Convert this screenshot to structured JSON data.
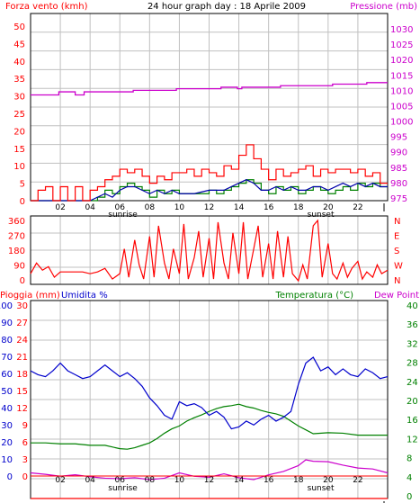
{
  "header": {
    "left_label": "Forza vento (kmh)",
    "title": "24 hour graph day : 18 Aprile 2009",
    "right_label": "Pressione (mb)"
  },
  "bottom_header": {
    "rain_label": "Pioggia (mm)",
    "humidity_label": "Umidita %",
    "temp_label": "Temperatura (°C)",
    "dew_label": "Dew Point"
  },
  "markers": {
    "sunrise": "sunrise",
    "sunset": "sunset"
  },
  "colors": {
    "wind_gust": "#ff0000",
    "wind_avg": "#008000",
    "wind_dark": "#0000aa",
    "pressure": "#cc00cc",
    "direction": "#ff0000",
    "humidity": "#0000cc",
    "temperature": "#008000",
    "dewpoint": "#cc00cc",
    "rain": "#ff0000",
    "grid": "#c0c0c0",
    "axis_left": "#ff0000",
    "axis_humidity": "#0000cc",
    "axis_right_top": "#cc00cc",
    "axis_right_bottom": "#008000"
  },
  "chart_data": [
    {
      "type": "line",
      "name": "wind-pressure",
      "x_ticks": [
        "02",
        "04",
        "06",
        "08",
        "10",
        "12",
        "14",
        "16",
        "18",
        "20",
        "22"
      ],
      "y_left_ticks": [
        "0",
        "5",
        "10",
        "15",
        "20",
        "25",
        "30",
        "35",
        "40",
        "45",
        "50"
      ],
      "y_left_range": [
        0,
        50
      ],
      "y_right_ticks": [
        "975",
        "980",
        "985",
        "990",
        "995",
        "1000",
        "1005",
        "1010",
        "1015",
        "1020",
        "1025",
        "1030"
      ],
      "y_right_range": [
        975,
        1030
      ],
      "pressure": {
        "x": [
          0,
          1,
          1.9,
          3,
          3.6,
          5.5,
          6.9,
          9.8,
          12.1,
          12.8,
          13.9,
          14.2,
          16.5,
          16.8,
          19.1,
          20.3,
          20.6,
          22.2,
          22.6,
          24
        ],
        "y": [
          1008.5,
          1008.5,
          1009.5,
          1008.5,
          1009.5,
          1009.5,
          1010,
          1010.5,
          1010.5,
          1011,
          1010.5,
          1011,
          1011,
          1011.5,
          1011.5,
          1012,
          1012,
          1012,
          1012.5,
          1012.5
        ]
      },
      "wind_gust": {
        "x": [
          0,
          0.5,
          1,
          1.5,
          2,
          2.5,
          3,
          3.5,
          4,
          4.5,
          5,
          5.5,
          6,
          6.5,
          7,
          7.5,
          8,
          8.5,
          9,
          9.5,
          10,
          10.5,
          11,
          11.5,
          12,
          12.5,
          13,
          13.5,
          14,
          14.5,
          15,
          15.5,
          16,
          16.5,
          17,
          17.5,
          18,
          18.5,
          19,
          19.5,
          20,
          20.5,
          21,
          21.5,
          22,
          22.5,
          23,
          23.5,
          24
        ],
        "y": [
          0,
          3,
          4,
          0,
          4,
          0,
          4,
          0,
          3,
          4,
          6,
          7,
          9,
          8,
          9,
          7,
          5,
          7,
          6,
          8,
          8,
          9,
          7,
          9,
          8,
          7,
          10,
          9,
          13,
          16,
          12,
          9,
          6,
          9,
          7,
          8,
          9,
          10,
          7,
          9,
          8,
          9,
          9,
          8,
          9,
          7,
          8,
          5,
          5
        ]
      },
      "wind_avg": {
        "x": [
          0,
          1,
          2,
          3,
          4,
          4.5,
          5,
          5.5,
          6,
          6.5,
          7,
          7.5,
          8,
          8.5,
          9,
          9.5,
          10,
          11,
          12,
          12.5,
          13,
          13.5,
          14,
          14.5,
          15,
          15.5,
          16,
          16.5,
          17,
          17.5,
          18,
          18.5,
          19,
          19.5,
          20,
          20.5,
          21,
          21.5,
          22,
          22.5,
          23,
          23.5,
          24
        ],
        "y": [
          0,
          0,
          0,
          0,
          0,
          1,
          3,
          2,
          4,
          5,
          4,
          3,
          1,
          3,
          2,
          3,
          2,
          2,
          3,
          2,
          3,
          4,
          5,
          6,
          5,
          3,
          2,
          4,
          3,
          4,
          2,
          3,
          4,
          3,
          2,
          3,
          4,
          3,
          5,
          4,
          5,
          4,
          4
        ]
      },
      "wind_dark": {
        "x": [
          0,
          1,
          2,
          3,
          4,
          4.5,
          5,
          5.5,
          6,
          6.5,
          7,
          7.5,
          8,
          8.5,
          9,
          9.5,
          10,
          11,
          12,
          12.5,
          13,
          13.5,
          14,
          14.5,
          15,
          15.5,
          16,
          16.5,
          17,
          17.5,
          18,
          18.5,
          19,
          19.5,
          20,
          20.5,
          21,
          21.5,
          22,
          22.5,
          23,
          23.5,
          24
        ],
        "y": [
          0,
          0,
          0,
          0,
          0,
          1,
          2,
          1,
          3,
          4,
          4,
          3,
          2,
          3,
          2,
          3,
          2,
          2,
          3,
          3,
          3,
          4,
          5,
          6,
          5,
          3,
          3,
          4,
          3,
          4,
          3,
          3,
          4,
          4,
          3,
          4,
          5,
          4,
          5,
          4,
          5,
          4,
          4
        ]
      }
    },
    {
      "type": "line",
      "name": "wind-direction",
      "x_ticks": [
        "02",
        "04",
        "06",
        "08",
        "10",
        "12",
        "14",
        "16",
        "18",
        "20",
        "22"
      ],
      "y_left_ticks": [
        "0",
        "90",
        "180",
        "270",
        "360"
      ],
      "y_left_range": [
        0,
        360
      ],
      "y_right_ticks": [
        "N",
        "W",
        "S",
        "E",
        "N"
      ],
      "direction": {
        "x": [
          0,
          0.4,
          0.8,
          1.2,
          1.6,
          2,
          2.5,
          3,
          3.5,
          4,
          4.5,
          5,
          5.5,
          6,
          6.3,
          6.6,
          7,
          7.3,
          7.6,
          8,
          8.3,
          8.6,
          9,
          9.3,
          9.6,
          10,
          10.3,
          10.6,
          11,
          11.3,
          11.6,
          12,
          12.3,
          12.6,
          13,
          13.3,
          13.6,
          14,
          14.3,
          14.6,
          15,
          15.3,
          15.6,
          16,
          16.3,
          16.6,
          17,
          17.3,
          17.6,
          18,
          18.3,
          18.6,
          19,
          19.3,
          19.6,
          20,
          20.3,
          20.6,
          21,
          21.3,
          21.6,
          22,
          22.3,
          22.6,
          23,
          23.3,
          23.6,
          24
        ],
        "y": [
          60,
          120,
          80,
          100,
          40,
          70,
          70,
          70,
          70,
          60,
          70,
          90,
          30,
          60,
          200,
          40,
          250,
          110,
          30,
          270,
          40,
          330,
          120,
          30,
          200,
          60,
          340,
          30,
          150,
          300,
          40,
          260,
          30,
          350,
          120,
          30,
          290,
          60,
          350,
          30,
          200,
          330,
          40,
          230,
          30,
          300,
          40,
          270,
          60,
          20,
          110,
          30,
          330,
          360,
          40,
          230,
          60,
          30,
          120,
          40,
          90,
          130,
          30,
          70,
          40,
          110,
          60,
          80
        ]
      }
    },
    {
      "type": "line",
      "name": "temp-humidity-rain",
      "x_ticks": [
        "02",
        "04",
        "06",
        "08",
        "10",
        "12",
        "14",
        "16",
        "18",
        "20",
        "22"
      ],
      "y_left_ticks": [
        "0",
        "10",
        "20",
        "30",
        "40",
        "50",
        "60",
        "70",
        "80",
        "90",
        "100"
      ],
      "y_left_range": [
        0,
        100
      ],
      "y_rain_ticks": [
        "0",
        "3",
        "6",
        "9",
        "12",
        "15",
        "18",
        "21",
        "24",
        "27",
        "30"
      ],
      "y_rain_range": [
        0,
        30
      ],
      "y_right_ticks": [
        "0",
        "4",
        "8",
        "12",
        "16",
        "20",
        "24",
        "28",
        "32",
        "36",
        "40"
      ],
      "y_right_range": [
        0,
        40
      ],
      "humidity": {
        "x": [
          0,
          0.5,
          1,
          1.5,
          2,
          2.5,
          3,
          3.5,
          4,
          4.5,
          5,
          5.5,
          6,
          6.5,
          7,
          7.5,
          8,
          8.5,
          9,
          9.5,
          10,
          10.5,
          11,
          11.5,
          12,
          12.5,
          13,
          13.5,
          14,
          14.5,
          15,
          15.5,
          16,
          16.5,
          17,
          17.5,
          18,
          18.5,
          19,
          19.5,
          20,
          20.5,
          21,
          21.5,
          22,
          22.5,
          23,
          23.5,
          24
        ],
        "y": [
          66,
          64,
          63,
          66,
          70,
          66,
          64,
          62,
          63,
          66,
          69,
          66,
          63,
          65,
          62,
          58,
          52,
          48,
          43,
          41,
          50,
          48,
          49,
          47,
          43,
          45,
          42,
          36,
          37,
          40,
          38,
          41,
          43,
          40,
          42,
          45,
          59,
          70,
          73,
          66,
          68,
          64,
          67,
          64,
          63,
          67,
          65,
          62,
          63
        ]
      },
      "temperature": {
        "x": [
          0,
          1,
          2,
          3,
          4,
          5,
          6,
          6.5,
          7,
          7.5,
          8,
          8.5,
          9,
          9.5,
          10,
          10.5,
          11,
          11.5,
          12,
          12.5,
          13,
          13.5,
          14,
          14.5,
          15,
          15.5,
          16,
          16.5,
          17,
          17.5,
          18,
          18.5,
          19,
          20,
          21,
          22,
          23,
          24
        ],
        "y": [
          11.5,
          11.5,
          11.3,
          11.3,
          11,
          11,
          10.3,
          10.2,
          10.5,
          11,
          11.5,
          12.4,
          13.5,
          14.4,
          15,
          16,
          16.7,
          17.3,
          18,
          18.6,
          19,
          19.2,
          19.5,
          19,
          18.7,
          18.2,
          17.8,
          17.5,
          17,
          16,
          15,
          14.2,
          13.4,
          13.6,
          13.5,
          13.1,
          13.1,
          13.1
        ]
      },
      "dewpoint": {
        "x": [
          0,
          1,
          2,
          3,
          4,
          5,
          6,
          7,
          8,
          9,
          10,
          11,
          12,
          13,
          14,
          15,
          16,
          17,
          18,
          18.5,
          19,
          20,
          21,
          22,
          23,
          24
        ],
        "y": [
          5.3,
          5,
          4.6,
          4.9,
          4.5,
          4.2,
          4.1,
          4.3,
          3.9,
          4.2,
          5.3,
          4.6,
          4.4,
          5.1,
          4.3,
          3.9,
          4.9,
          5.6,
          6.8,
          8,
          7.7,
          7.6,
          6.9,
          6.3,
          6.1,
          5.3
        ]
      },
      "rain": {
        "x": [
          0,
          24
        ],
        "y": [
          0,
          0
        ]
      }
    }
  ]
}
